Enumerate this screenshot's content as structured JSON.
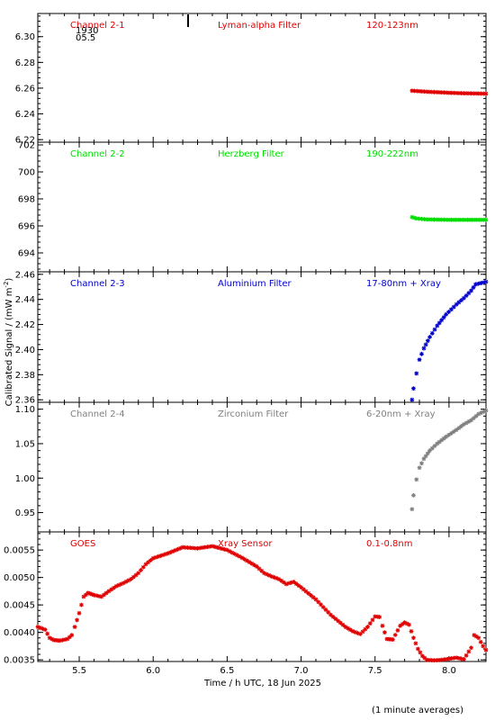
{
  "chart_data": {
    "type": "scatter",
    "ylabel_shared": "Calibrated Signal / (mW m",
    "ylabel_sup": "-2",
    "ylabel_close": ")",
    "xlabel": "Time / h UTC, 18 Jun 2025",
    "footnote": "(1 minute averages)",
    "xlim": [
      5.22,
      8.25
    ],
    "xticks": [
      "5.5",
      "6.0",
      "6.5",
      "7.0",
      "7.5",
      "8.0"
    ],
    "corner_text": [
      "1930",
      "05.5"
    ],
    "panels": [
      {
        "channel": "Channel 2-1",
        "filter": "Lyman-alpha Filter",
        "band": "120-123nm",
        "color": "#e00000",
        "ylim": [
          6.218,
          6.318
        ],
        "yticks": [
          "6.22",
          "6.24",
          "6.26",
          "6.28",
          "6.30"
        ],
        "x": [
          7.75,
          7.85,
          8.0,
          8.1,
          8.25
        ],
        "y": [
          6.258,
          6.2572,
          6.2564,
          6.256,
          6.2557
        ]
      },
      {
        "channel": "Channel 2-2",
        "filter": "Herzberg Filter",
        "band": "190-222nm",
        "color": "#00dd00",
        "ylim": [
          692.6,
          702.2
        ],
        "yticks": [
          "694",
          "696",
          "698",
          "700",
          "702"
        ],
        "x": [
          7.75,
          7.78,
          7.85,
          8.0,
          8.25
        ],
        "y": [
          696.65,
          696.55,
          696.48,
          696.45,
          696.45
        ]
      },
      {
        "channel": "Channel 2-3",
        "filter": "Aluminium Filter",
        "band": "17-80nm + Xray",
        "color": "#0000cc",
        "ylim": [
          2.358,
          2.462
        ],
        "yticks": [
          "2.36",
          "2.38",
          "2.40",
          "2.42",
          "2.44",
          "2.46"
        ],
        "x": [
          7.75,
          7.76,
          7.78,
          7.8,
          7.83,
          7.87,
          7.92,
          7.98,
          8.05,
          8.1,
          8.15,
          8.18,
          8.25
        ],
        "y": [
          2.36,
          2.369,
          2.381,
          2.392,
          2.401,
          2.41,
          2.419,
          2.428,
          2.436,
          2.441,
          2.447,
          2.452,
          2.454
        ]
      },
      {
        "channel": "Channel 2-4",
        "filter": "Zirconium Filter",
        "band": "6-20nm + Xray",
        "color": "#808080",
        "ylim": [
          0.922,
          1.11
        ],
        "yticks": [
          "0.95",
          "1.00",
          "1.05",
          "1.10"
        ],
        "x": [
          7.75,
          7.76,
          7.78,
          7.8,
          7.83,
          7.87,
          7.92,
          7.98,
          8.05,
          8.1,
          8.15,
          8.2,
          8.25
        ],
        "y": [
          0.955,
          0.975,
          0.998,
          1.015,
          1.028,
          1.04,
          1.05,
          1.06,
          1.07,
          1.078,
          1.084,
          1.093,
          1.098
        ]
      },
      {
        "channel": "GOES",
        "filter": "Xray Sensor",
        "band": "0.1-0.8nm",
        "color": "#e00000",
        "ylim": [
          0.00347,
          0.00583
        ],
        "yticks": [
          "0.0035",
          "0.0040",
          "0.0045",
          "0.0050",
          "0.0055"
        ],
        "x": [
          5.22,
          5.27,
          5.3,
          5.33,
          5.37,
          5.42,
          5.45,
          5.47,
          5.5,
          5.53,
          5.56,
          5.6,
          5.65,
          5.7,
          5.75,
          5.8,
          5.85,
          5.9,
          5.95,
          6.0,
          6.1,
          6.2,
          6.3,
          6.4,
          6.5,
          6.6,
          6.7,
          6.75,
          6.8,
          6.85,
          6.9,
          6.95,
          7.0,
          7.1,
          7.2,
          7.3,
          7.35,
          7.4,
          7.45,
          7.5,
          7.53,
          7.55,
          7.58,
          7.62,
          7.67,
          7.7,
          7.73,
          7.76,
          7.79,
          7.82,
          7.85,
          7.9,
          7.95,
          8.0,
          8.05,
          8.1,
          8.15,
          8.17,
          8.2,
          8.23,
          8.25
        ],
        "y": [
          0.0041,
          0.00405,
          0.0039,
          0.00386,
          0.00385,
          0.00388,
          0.00395,
          0.0041,
          0.00435,
          0.00465,
          0.00472,
          0.00468,
          0.00465,
          0.00475,
          0.00484,
          0.0049,
          0.00497,
          0.00508,
          0.00524,
          0.00535,
          0.00544,
          0.00555,
          0.00553,
          0.00557,
          0.0055,
          0.00536,
          0.0052,
          0.00508,
          0.00502,
          0.00497,
          0.00488,
          0.00492,
          0.00482,
          0.0046,
          0.00432,
          0.0041,
          0.00402,
          0.00397,
          0.0041,
          0.00429,
          0.00428,
          0.00412,
          0.00388,
          0.00387,
          0.00412,
          0.00418,
          0.00414,
          0.0039,
          0.0037,
          0.00357,
          0.0035,
          0.00349,
          0.0035,
          0.00352,
          0.00354,
          0.00351,
          0.00372,
          0.00395,
          0.0039,
          0.00375,
          0.00368
        ]
      }
    ]
  }
}
